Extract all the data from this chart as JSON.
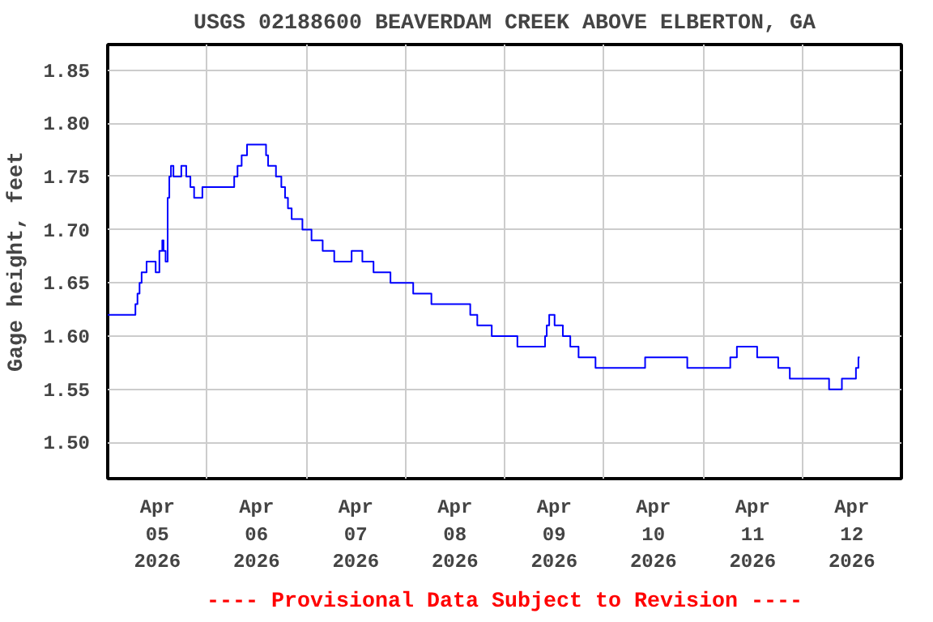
{
  "chart_data": {
    "type": "step",
    "title": "USGS 02188600 BEAVERDAM CREEK ABOVE ELBERTON, GA",
    "ylabel": "Gage height, feet",
    "annotations": [
      "---- Provisional Data Subject to Revision ----"
    ],
    "x": [
      "2026-04-05T00:00",
      "2026-04-05T06:42",
      "2026-04-05T07:12",
      "2026-04-05T07:42",
      "2026-04-05T08:12",
      "2026-04-05T09:24",
      "2026-04-05T11:36",
      "2026-04-05T12:30",
      "2026-04-05T13:12",
      "2026-04-05T13:30",
      "2026-04-05T14:00",
      "2026-04-05T14:30",
      "2026-04-05T14:54",
      "2026-04-05T15:18",
      "2026-04-05T15:54",
      "2026-04-05T17:48",
      "2026-04-05T19:00",
      "2026-04-05T20:00",
      "2026-04-05T20:54",
      "2026-04-05T22:54",
      "2026-04-06T06:36",
      "2026-04-06T07:24",
      "2026-04-06T08:24",
      "2026-04-06T09:42",
      "2026-04-06T14:18",
      "2026-04-06T14:48",
      "2026-04-06T16:42",
      "2026-04-06T18:00",
      "2026-04-06T18:54",
      "2026-04-06T19:36",
      "2026-04-06T20:30",
      "2026-04-06T23:06",
      "2026-04-07T01:18",
      "2026-04-07T04:00",
      "2026-04-07T06:48",
      "2026-04-07T11:00",
      "2026-04-07T13:36",
      "2026-04-07T16:18",
      "2026-04-07T20:24",
      "2026-04-08T01:54",
      "2026-04-08T06:18",
      "2026-04-08T15:42",
      "2026-04-08T17:24",
      "2026-04-08T20:54",
      "2026-04-09T03:06",
      "2026-04-09T09:48",
      "2026-04-09T10:12",
      "2026-04-09T10:48",
      "2026-04-09T12:06",
      "2026-04-09T14:06",
      "2026-04-09T15:54",
      "2026-04-09T17:54",
      "2026-04-09T22:00",
      "2026-04-10T10:00",
      "2026-04-10T20:12",
      "2026-04-11T06:36",
      "2026-04-11T08:12",
      "2026-04-11T13:06",
      "2026-04-11T18:12",
      "2026-04-11T21:00",
      "2026-04-12T06:30",
      "2026-04-12T09:36",
      "2026-04-12T13:00",
      "2026-04-12T13:36",
      "2026-04-12T13:54"
    ],
    "series": [
      {
        "color": "#0000ff",
        "values": [
          1.62,
          1.63,
          1.64,
          1.65,
          1.66,
          1.67,
          1.66,
          1.68,
          1.69,
          1.68,
          1.67,
          1.73,
          1.75,
          1.76,
          1.75,
          1.76,
          1.75,
          1.74,
          1.73,
          1.74,
          1.75,
          1.76,
          1.77,
          1.78,
          1.77,
          1.76,
          1.75,
          1.74,
          1.73,
          1.72,
          1.71,
          1.7,
          1.69,
          1.68,
          1.67,
          1.68,
          1.67,
          1.66,
          1.65,
          1.64,
          1.63,
          1.62,
          1.61,
          1.6,
          1.59,
          1.6,
          1.61,
          1.62,
          1.61,
          1.6,
          1.59,
          1.58,
          1.57,
          1.58,
          1.57,
          1.58,
          1.59,
          1.58,
          1.57,
          1.56,
          1.55,
          1.56,
          1.57,
          1.58,
          1.58
        ]
      }
    ],
    "xlim": [
      "2026-04-05T00:00",
      "2026-04-13T00:00"
    ],
    "xticks": [
      {
        "value": "2026-04-05T12:00",
        "label": "Apr\n05\n2026"
      },
      {
        "value": "2026-04-06T12:00",
        "label": "Apr\n06\n2026"
      },
      {
        "value": "2026-04-07T12:00",
        "label": "Apr\n07\n2026"
      },
      {
        "value": "2026-04-08T12:00",
        "label": "Apr\n08\n2026"
      },
      {
        "value": "2026-04-09T12:00",
        "label": "Apr\n09\n2026"
      },
      {
        "value": "2026-04-10T12:00",
        "label": "Apr\n10\n2026"
      },
      {
        "value": "2026-04-11T12:00",
        "label": "Apr\n11\n2026"
      },
      {
        "value": "2026-04-12T12:00",
        "label": "Apr\n12\n2026"
      },
      {
        "value": "2026-04-06T00:00",
        "label": null
      },
      {
        "value": "2026-04-07T00:00",
        "label": null
      },
      {
        "value": "2026-04-08T00:00",
        "label": null
      },
      {
        "value": "2026-04-09T00:00",
        "label": null
      },
      {
        "value": "2026-04-10T00:00",
        "label": null
      },
      {
        "value": "2026-04-11T00:00",
        "label": null
      },
      {
        "value": "2026-04-12T00:00",
        "label": null
      }
    ],
    "ylim": [
      1.466,
      1.874
    ],
    "yticks": [
      {
        "value": 1.5,
        "label": "1.50"
      },
      {
        "value": 1.55,
        "label": "1.55"
      },
      {
        "value": 1.6,
        "label": "1.60"
      },
      {
        "value": 1.65,
        "label": "1.65"
      },
      {
        "value": 1.7,
        "label": "1.70"
      },
      {
        "value": 1.75,
        "label": "1.75"
      },
      {
        "value": 1.8,
        "label": "1.80"
      },
      {
        "value": 1.85,
        "label": "1.85"
      }
    ],
    "grid": true
  }
}
